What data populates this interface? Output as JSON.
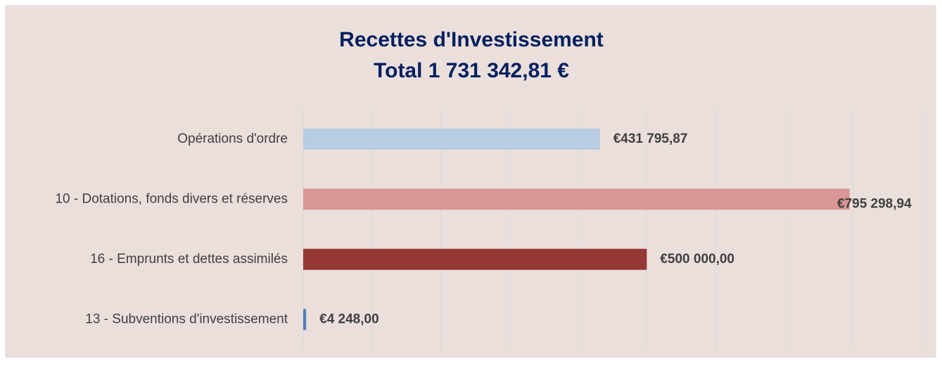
{
  "chart_data": {
    "type": "hbar",
    "title": "Recettes d'Investissement",
    "subtitle": "Total 1 731 342,81 €",
    "categories": [
      "Opérations d'ordre",
      "10 - Dotations, fonds divers et réserves",
      "16 - Emprunts et dettes assimilés",
      "13 - Subventions d'investissement"
    ],
    "values": [
      431795.87,
      795298.94,
      500000,
      4248
    ],
    "value_labels": [
      "€431 795,87",
      "€795 298,94",
      "€500 000,00",
      "€4 248,00"
    ],
    "colors": [
      "#b8cce4",
      "#da9694",
      "#953735",
      "#4f81bd"
    ],
    "xlim": [
      0,
      900000
    ],
    "xticks": [
      0,
      100000,
      200000,
      300000,
      400000,
      500000,
      600000,
      700000,
      800000,
      900000
    ],
    "grid": true
  }
}
